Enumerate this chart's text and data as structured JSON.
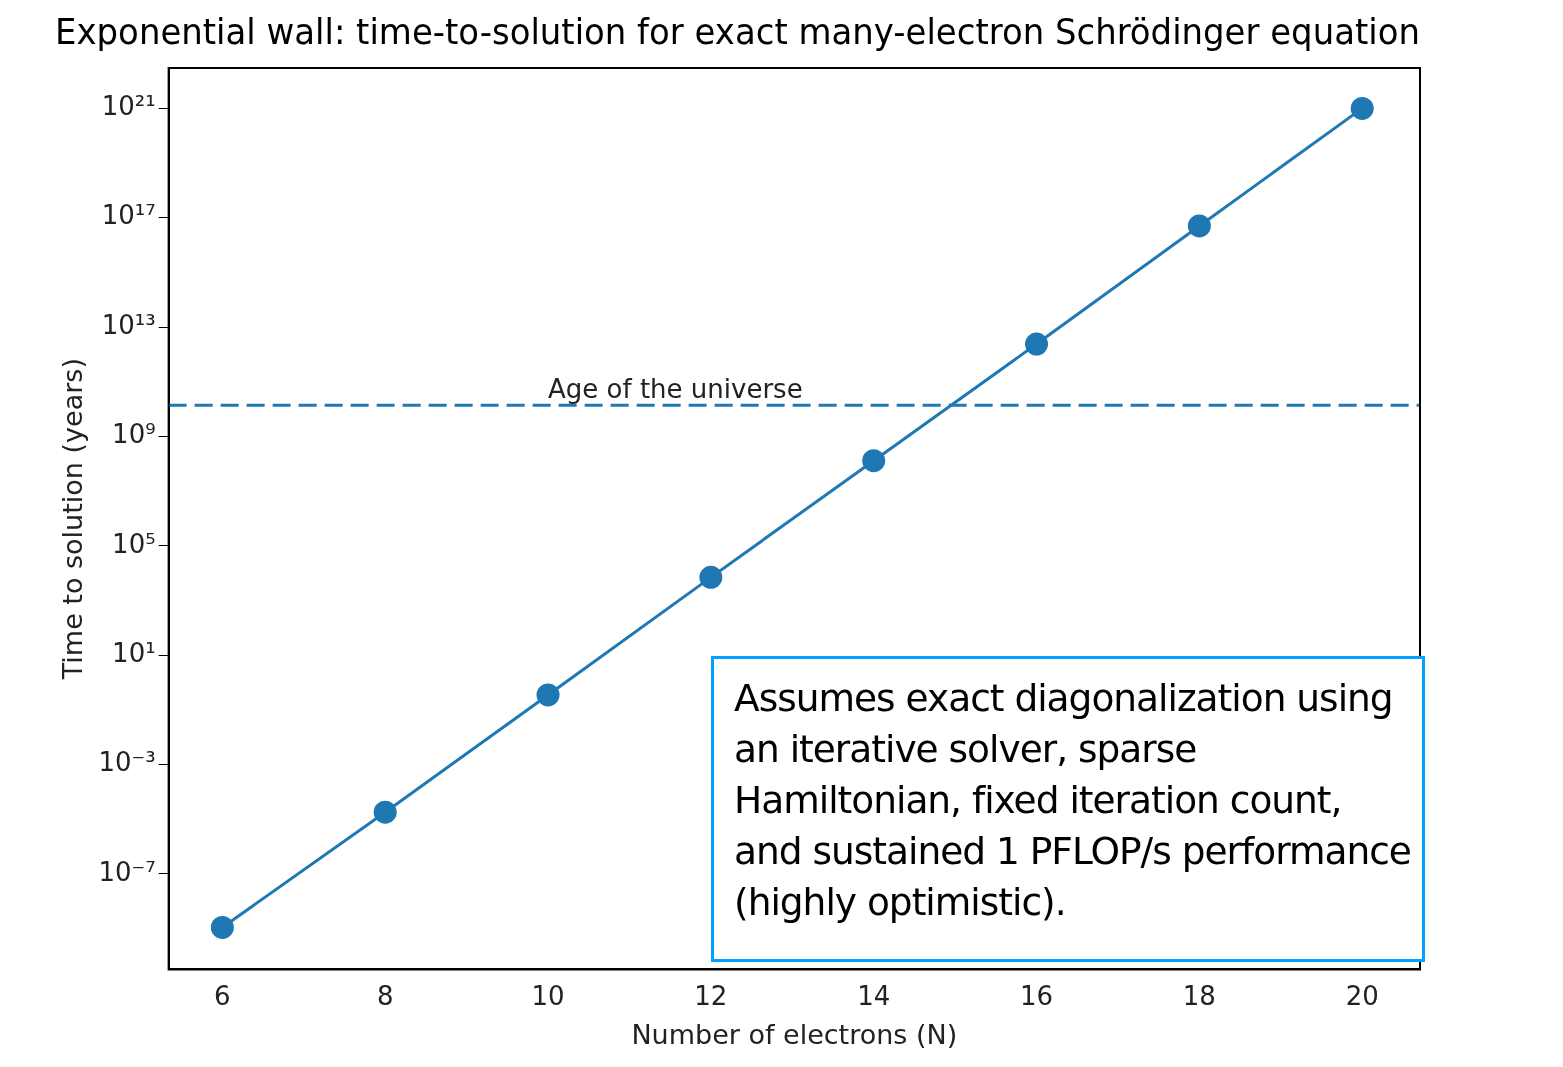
{
  "chart_data": {
    "type": "line",
    "title": "Exponential wall: time-to-solution for exact many-electron Schrödinger equation",
    "xlabel": "Number of electrons (N)",
    "ylabel": "Time to solution (years)",
    "x": [
      6,
      8,
      10,
      12,
      14,
      16,
      18,
      20
    ],
    "series": [
      {
        "color": "#1f77b4",
        "values": [
          1.1e-09,
          1.8e-05,
          0.35,
          7000,
          130000000.0,
          2400000000000.0,
          5e+16,
          1e+21
        ]
      }
    ],
    "log": "y",
    "xlim": [
      5.34,
      20.71
    ],
    "ylim": [
      3.2e-11,
      3e+22
    ],
    "xticks": [
      6,
      8,
      10,
      12,
      14,
      16,
      18,
      20
    ],
    "yticks": [
      {
        "value": 1e-07,
        "label": "10⁻⁷"
      },
      {
        "value": 0.001,
        "label": "10⁻³"
      },
      {
        "value": 10,
        "label": "10¹"
      },
      {
        "value": 100000.0,
        "label": "10⁵"
      },
      {
        "value": 1000000000.0,
        "label": "10⁹"
      },
      {
        "value": 10000000000000.0,
        "label": "10¹³"
      },
      {
        "value": 1e+17,
        "label": "10¹⁷"
      },
      {
        "value": 1e+21,
        "label": "10²¹"
      }
    ],
    "grid": false,
    "legend": false,
    "marker": "circle",
    "line_style": "solid",
    "ref_lines": [
      {
        "axis": "y",
        "value": 13800000000.0,
        "label": "Age of the universe",
        "color": "#1f77b4",
        "line_style": "dashed"
      }
    ],
    "annotations": [
      "Assumes exact diagonalization using an iterative solver, sparse Hamiltonian, fixed iteration count, and sustained 1 PFLOP/s performance (highly optimistic)."
    ]
  }
}
